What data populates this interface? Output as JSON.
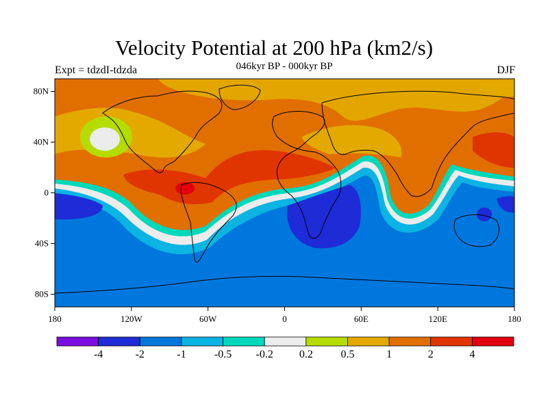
{
  "title": "Velocity Potential at 200 hPa (km2/s)",
  "subtitle": "046kyr BP - 000kyr BP",
  "left_label": "Expt = tdzdI-tdzda",
  "right_label": "DJF",
  "axes": {
    "x_ticks": [
      "180",
      "120W",
      "60W",
      "0",
      "60E",
      "120E",
      "180"
    ],
    "y_ticks": [
      "80N",
      "40N",
      "0",
      "40S",
      "80S"
    ],
    "x_values": [
      -180,
      -120,
      -60,
      0,
      60,
      120,
      180
    ],
    "y_values": [
      80,
      40,
      0,
      -40,
      -80
    ],
    "lon_range": [
      -180,
      180
    ],
    "lat_range": [
      -90,
      90
    ]
  },
  "colorbar": {
    "colors": [
      "#7b0ede",
      "#1e2bd6",
      "#0077dd",
      "#0bb4e2",
      "#00d8bc",
      "#ececec",
      "#b5dc00",
      "#e3a900",
      "#e16f00",
      "#e03500",
      "#e20010"
    ],
    "labels": [
      "-4",
      "-2",
      "-1",
      "-0.5",
      "-0.2",
      "0.2",
      "0.5",
      "1",
      "2",
      "4"
    ],
    "levels": [
      -4,
      -2,
      -1,
      -0.5,
      -0.2,
      0.2,
      0.5,
      1,
      2,
      4
    ]
  }
}
